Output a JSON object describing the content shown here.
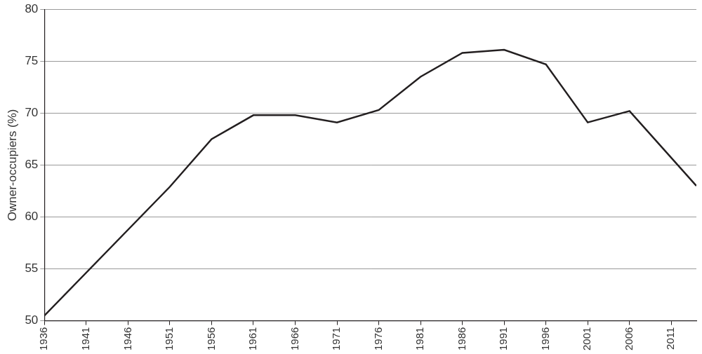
{
  "chart_data": {
    "type": "line",
    "y_label": "Owner-occupiers (%)",
    "x": [
      1936,
      1951,
      1956,
      1961,
      1966,
      1971,
      1976,
      1981,
      1986,
      1991,
      1996,
      2001,
      2006,
      2014
    ],
    "values": [
      50.5,
      62.9,
      67.5,
      69.8,
      69.8,
      69.1,
      70.3,
      73.5,
      75.8,
      76.1,
      74.7,
      69.1,
      70.2,
      63.0
    ],
    "color": "#231f20",
    "xlim": [
      1936,
      2014
    ],
    "xticks": [
      1936,
      1941,
      1946,
      1951,
      1956,
      1961,
      1966,
      1971,
      1976,
      1981,
      1986,
      1991,
      1996,
      2001,
      2006,
      2011
    ],
    "ylim": [
      50,
      80
    ],
    "yticks": [
      50,
      55,
      60,
      65,
      70,
      75,
      80
    ],
    "grid": true
  }
}
